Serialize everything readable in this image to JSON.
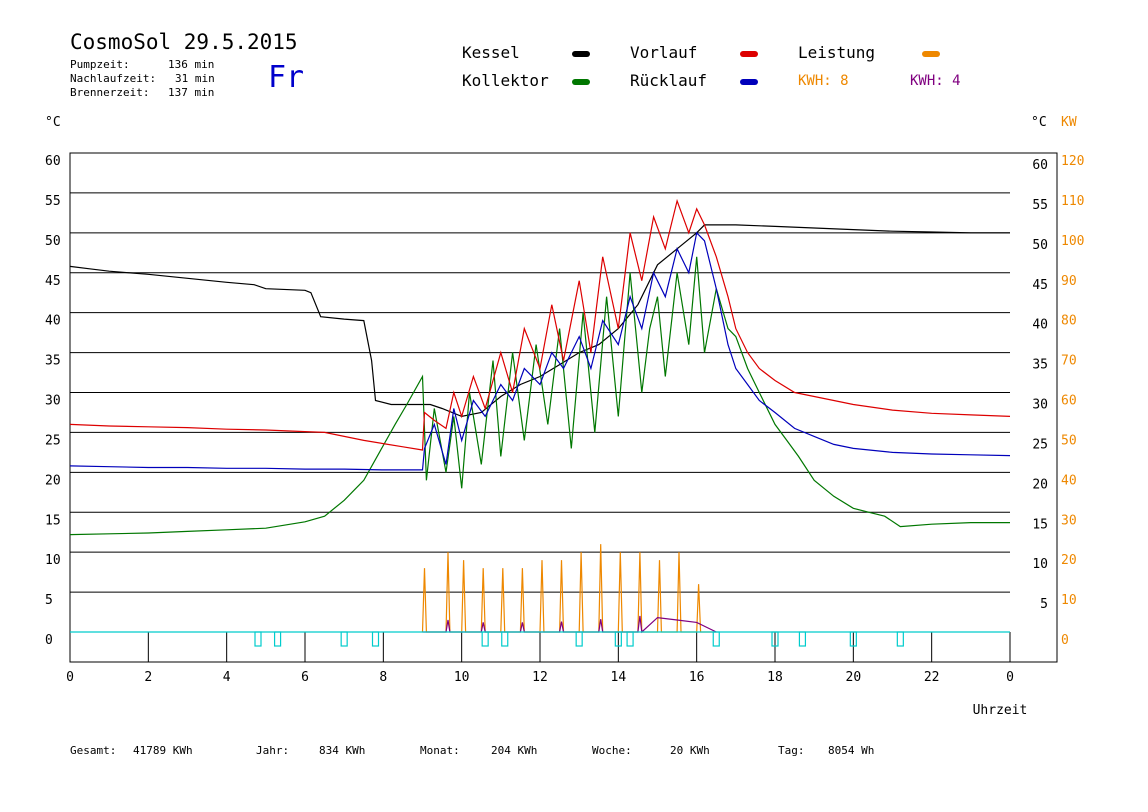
{
  "header": {
    "title": "CosmoSol 29.5.2015",
    "day": "Fr",
    "pump_label": "Pumpzeit:",
    "pump_value": "136 min",
    "nach_label": "Nachlaufzeit:",
    "nach_value": "31 min",
    "brenner_label": "Brennerzeit:",
    "brenner_value": "137 min"
  },
  "legend": {
    "kessel": "Kessel",
    "kollektor": "Kollektor",
    "vorlauf": "Vorlauf",
    "ruecklauf": "Rücklauf",
    "leistung": "Leistung",
    "kwh1": "KWH: 8",
    "kwh2": "KWH: 4"
  },
  "footer": {
    "gesamt_label": "Gesamt:",
    "gesamt_value": "41789 KWh",
    "jahr_label": "Jahr:",
    "jahr_value": "834 KWh",
    "monat_label": "Monat:",
    "monat_value": "204 KWh",
    "woche_label": "Woche:",
    "woche_value": "20 KWh",
    "tag_label": "Tag:",
    "tag_value": "8054 Wh"
  },
  "colors": {
    "kessel": "#000000",
    "kollektor": "#007700",
    "vorlauf": "#dd0000",
    "ruecklauf": "#0000bb",
    "leistung": "#ee8800",
    "kwh2": "#800080",
    "pump": "#00cccc",
    "kw_axis": "#ee8800"
  },
  "chart_data": {
    "type": "line",
    "xlabel": "Uhrzeit",
    "ylabel_left": "°C",
    "ylabel_right_c": "°C",
    "ylabel_right_kw": "KW",
    "xlim": [
      0,
      24
    ],
    "ylim": [
      0,
      60
    ],
    "y2lim": [
      0,
      120
    ],
    "x_ticks": [
      "0",
      "2",
      "4",
      "6",
      "8",
      "10",
      "12",
      "14",
      "16",
      "18",
      "20",
      "22",
      "0"
    ],
    "y_ticks": [
      0,
      5,
      10,
      15,
      20,
      25,
      30,
      35,
      40,
      45,
      50,
      55,
      60
    ],
    "y_ticks_right_c": [
      5,
      10,
      15,
      20,
      25,
      30,
      35,
      40,
      45,
      50,
      55,
      60
    ],
    "y2_ticks": [
      0,
      10,
      20,
      30,
      40,
      50,
      60,
      70,
      80,
      90,
      100,
      110,
      120
    ],
    "grid": true,
    "series": [
      {
        "name": "Kessel",
        "x": [
          0,
          0.5,
          1,
          2,
          3,
          4,
          4.7,
          5,
          6,
          6.15,
          6.4,
          7,
          7.5,
          7.7,
          7.8,
          8.2,
          9.2,
          9.5,
          10,
          10.5,
          11,
          11.5,
          12,
          12.5,
          13,
          13.5,
          14,
          14.5,
          15,
          15.5,
          16,
          16.2,
          17,
          18,
          19,
          20,
          21,
          22,
          23,
          24
        ],
        "y": [
          45.8,
          45.5,
          45.2,
          44.8,
          44.3,
          43.8,
          43.5,
          43,
          42.8,
          42.5,
          39.5,
          39.2,
          39,
          34,
          29,
          28.5,
          28.5,
          28,
          27,
          27.5,
          29.5,
          31,
          32,
          33.5,
          35,
          36,
          38,
          41,
          46,
          48,
          50,
          51,
          51,
          50.8,
          50.6,
          50.4,
          50.2,
          50.1,
          50,
          50
        ]
      },
      {
        "name": "Kollektor",
        "x": [
          0,
          1,
          2,
          3,
          4,
          5,
          6,
          6.5,
          7,
          7.5,
          7.9,
          8.3,
          8.6,
          9,
          9.1,
          9.3,
          9.6,
          9.8,
          10,
          10.2,
          10.5,
          10.8,
          11,
          11.3,
          11.6,
          11.9,
          12.2,
          12.5,
          12.8,
          13.1,
          13.4,
          13.7,
          14,
          14.3,
          14.6,
          14.8,
          15,
          15.2,
          15.5,
          15.8,
          16,
          16.2,
          16.5,
          16.8,
          17,
          17.3,
          17.6,
          18,
          18.3,
          18.6,
          19,
          19.5,
          20,
          20.4,
          20.8,
          21.2,
          22,
          23,
          24
        ],
        "y": [
          12.2,
          12.3,
          12.4,
          12.6,
          12.8,
          13,
          13.8,
          14.5,
          16.5,
          19,
          22.5,
          26,
          28.5,
          32,
          19,
          28,
          20,
          27,
          18,
          30,
          21,
          34,
          22,
          35,
          24,
          36,
          26,
          38,
          23,
          40,
          25,
          42,
          27,
          45,
          30,
          38,
          42,
          32,
          45,
          36,
          47,
          35,
          43,
          38,
          37,
          33,
          30,
          26,
          24,
          22,
          19,
          17,
          15.5,
          15,
          14.5,
          13.2,
          13.5,
          13.7,
          13.7
        ]
      },
      {
        "name": "Vorlauf",
        "x": [
          0,
          1,
          2,
          3,
          4,
          5,
          6,
          6.5,
          7,
          7.5,
          8,
          8.5,
          9,
          9.05,
          9.3,
          9.6,
          9.8,
          10,
          10.3,
          10.6,
          11,
          11.3,
          11.6,
          12,
          12.3,
          12.6,
          13,
          13.3,
          13.6,
          14,
          14.3,
          14.6,
          14.9,
          15.2,
          15.5,
          15.8,
          16,
          16.2,
          16.5,
          16.8,
          17,
          17.3,
          17.6,
          18,
          18.5,
          19,
          19.5,
          20,
          21,
          22,
          23,
          24
        ],
        "y": [
          26,
          25.8,
          25.7,
          25.6,
          25.4,
          25.3,
          25.1,
          25,
          24.5,
          24,
          23.6,
          23.2,
          22.8,
          27.5,
          26.5,
          25.5,
          30,
          27,
          32,
          28,
          35,
          30,
          38,
          33,
          41,
          34,
          44,
          35,
          47,
          38,
          50,
          44,
          52,
          48,
          54,
          50,
          53,
          51,
          47,
          42,
          38,
          35,
          33,
          31.5,
          30,
          29.5,
          29,
          28.5,
          27.8,
          27.4,
          27.2,
          27
        ]
      },
      {
        "name": "Rücklauf",
        "x": [
          0,
          1,
          2,
          3,
          4,
          5,
          6,
          7,
          8,
          9,
          9.05,
          9.3,
          9.6,
          9.8,
          10,
          10.3,
          10.6,
          11,
          11.3,
          11.6,
          12,
          12.3,
          12.6,
          13,
          13.3,
          13.6,
          14,
          14.3,
          14.6,
          14.9,
          15.2,
          15.5,
          15.8,
          16,
          16.2,
          16.5,
          16.8,
          17,
          17.3,
          17.6,
          18,
          18.5,
          19,
          19.5,
          20,
          21,
          22,
          23,
          24
        ],
        "y": [
          20.8,
          20.7,
          20.6,
          20.6,
          20.5,
          20.5,
          20.4,
          20.4,
          20.3,
          20.3,
          23,
          26,
          21,
          28,
          24,
          29,
          27,
          31,
          29,
          33,
          31,
          35,
          33,
          37,
          33,
          39,
          36,
          42,
          38,
          45,
          42,
          48,
          45,
          50,
          49,
          43,
          36,
          33,
          31,
          29,
          27.5,
          25.5,
          24.5,
          23.5,
          23,
          22.5,
          22.3,
          22.2,
          22.1
        ]
      },
      {
        "name": "Leistung",
        "x": [
          9,
          9.05,
          9.1,
          9.6,
          9.65,
          9.7,
          10,
          10.05,
          10.1,
          10.5,
          10.55,
          10.6,
          11,
          11.05,
          11.1,
          11.5,
          11.55,
          11.6,
          12,
          12.05,
          12.1,
          12.5,
          12.55,
          12.6,
          13,
          13.05,
          13.1,
          13.5,
          13.55,
          13.6,
          14,
          14.05,
          14.1,
          14.5,
          14.55,
          14.6,
          15,
          15.05,
          15.1,
          15.5,
          15.55,
          15.6,
          16,
          16.05,
          16.1,
          16.4,
          16.5
        ],
        "y": [
          0,
          8,
          0,
          0,
          10,
          0,
          0,
          9,
          0,
          0,
          8,
          0,
          0,
          8,
          0,
          0,
          8,
          0,
          0,
          9,
          0,
          0,
          9,
          0,
          0,
          10,
          0,
          0,
          11,
          0,
          0,
          10,
          0,
          0,
          10,
          0,
          0,
          9,
          0,
          0,
          10,
          0,
          0,
          6,
          0,
          0,
          0
        ]
      },
      {
        "name": "KWH2",
        "x": [
          9,
          9.6,
          9.65,
          9.7,
          10.5,
          10.55,
          10.6,
          11.5,
          11.55,
          11.6,
          12.5,
          12.55,
          12.6,
          13.5,
          13.55,
          13.6,
          14.5,
          14.55,
          14.6,
          15,
          15.5,
          16,
          16.5
        ],
        "y": [
          0,
          0,
          1.5,
          0,
          0,
          1.2,
          0,
          0,
          1.2,
          0,
          0,
          1.3,
          0,
          0,
          1.6,
          0,
          0,
          2,
          0,
          1.8,
          1.5,
          1.2,
          0
        ]
      },
      {
        "name": "Pumpe",
        "x": [
          0,
          24
        ],
        "y": [
          0,
          0
        ]
      }
    ],
    "pump_markers": [
      4.8,
      5.3,
      7,
      7.8,
      10.6,
      11.1,
      13,
      14,
      14.3,
      16.5,
      18,
      18.7,
      20,
      21.2
    ]
  }
}
